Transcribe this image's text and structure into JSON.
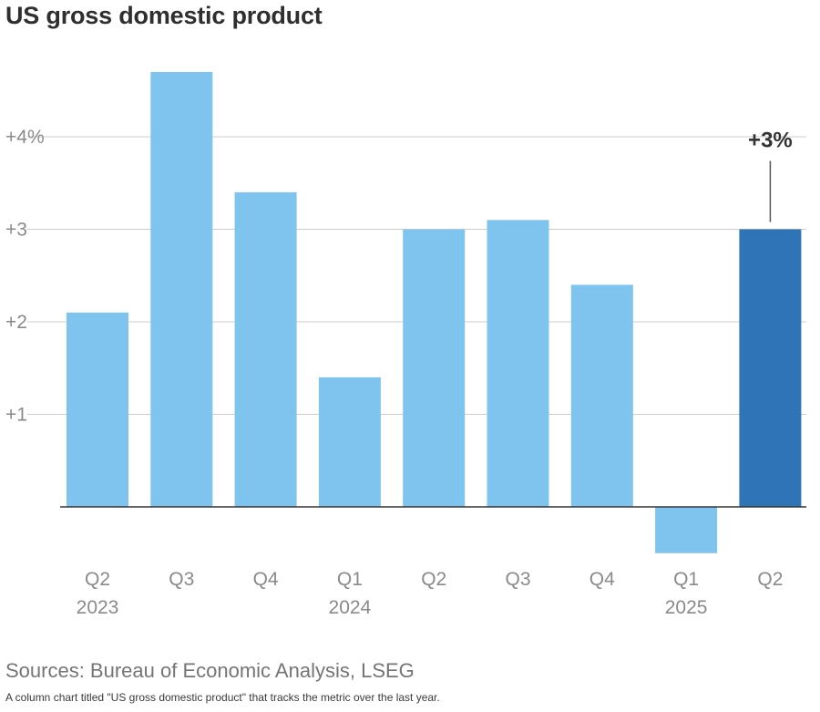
{
  "title": "US gross domestic product",
  "source": "Sources: Bureau of Economic Analysis, LSEG",
  "caption": "A column chart titled \"US gross domestic product\" that tracks the metric over the last year.",
  "colors": {
    "bar": "#7fc4ee",
    "highlight": "#2f74b7",
    "grid": "#cccccc",
    "axis": "#333333",
    "tick_label": "#8a8a8a",
    "annotation": "#333333"
  },
  "chart_data": {
    "type": "bar",
    "title": "US gross domestic product",
    "categories": [
      {
        "quarter": "Q2",
        "year": "2023"
      },
      {
        "quarter": "Q3",
        "year": ""
      },
      {
        "quarter": "Q4",
        "year": ""
      },
      {
        "quarter": "Q1",
        "year": "2024"
      },
      {
        "quarter": "Q2",
        "year": ""
      },
      {
        "quarter": "Q3",
        "year": ""
      },
      {
        "quarter": "Q4",
        "year": ""
      },
      {
        "quarter": "Q1",
        "year": "2025"
      },
      {
        "quarter": "Q2",
        "year": ""
      }
    ],
    "values": [
      2.1,
      4.7,
      3.4,
      1.4,
      3.0,
      3.1,
      2.4,
      -0.5,
      3.0
    ],
    "highlight_index": 8,
    "annotation": {
      "index": 8,
      "text": "+3%"
    },
    "y_ticks": [
      {
        "value": 1,
        "label": "+1"
      },
      {
        "value": 2,
        "label": "+2"
      },
      {
        "value": 3,
        "label": "+3"
      },
      {
        "value": 4,
        "label": "+4%"
      }
    ],
    "ylim": [
      -0.6,
      5.0
    ],
    "grid": true,
    "legend": "none"
  }
}
